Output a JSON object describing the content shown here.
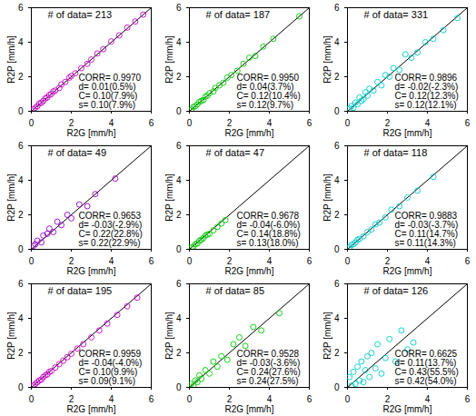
{
  "chart_data": [
    {
      "type": "scatter",
      "xlabel": "R2G [mm/h]",
      "ylabel": "R2P [mm/h]",
      "xlim": [
        0,
        6
      ],
      "ylim": [
        0,
        6
      ],
      "xticks": [
        0,
        2,
        4,
        6
      ],
      "yticks": [
        0,
        2,
        4,
        6
      ],
      "grid": false,
      "color": "#cc00cc",
      "marker": "circle",
      "annotations": [
        "# of data= 213",
        "CORR= 0.9970",
        "d= 0.01(0.5%)",
        "C= 0.10(7.9%)",
        "s= 0.10(7.9%)"
      ],
      "x": [
        0.1,
        0.2,
        0.3,
        0.4,
        0.5,
        0.6,
        0.7,
        0.8,
        0.9,
        1.0,
        1.1,
        1.2,
        1.4,
        1.5,
        1.7,
        1.9,
        2.0,
        2.2,
        2.5,
        2.8,
        3.0,
        3.3,
        3.6,
        4.0,
        4.4,
        4.8,
        5.2,
        5.6
      ],
      "y": [
        0.1,
        0.2,
        0.3,
        0.45,
        0.5,
        0.6,
        0.75,
        0.8,
        0.95,
        1.0,
        1.15,
        1.2,
        1.35,
        1.55,
        1.7,
        1.95,
        2.05,
        2.2,
        2.5,
        2.75,
        3.0,
        3.35,
        3.6,
        4.05,
        4.4,
        4.85,
        5.2,
        5.6
      ]
    },
    {
      "type": "scatter",
      "xlabel": "R2G [mm/h]",
      "ylabel": "R2P [mm/h]",
      "xlim": [
        0,
        6
      ],
      "ylim": [
        0,
        6
      ],
      "xticks": [
        0,
        2,
        4,
        6
      ],
      "yticks": [
        0,
        2,
        4,
        6
      ],
      "grid": false,
      "color": "#00cc00",
      "marker": "circle",
      "annotations": [
        "# of data= 187",
        "CORR= 0.9950",
        "d= 0.04(3.7%)",
        "C= 0.12(10.4%)",
        "s= 0.12(9.7%)"
      ],
      "x": [
        0.1,
        0.2,
        0.3,
        0.4,
        0.5,
        0.6,
        0.7,
        0.8,
        0.9,
        1.0,
        1.2,
        1.3,
        1.5,
        1.7,
        1.9,
        2.1,
        2.4,
        2.7,
        3.0,
        3.3,
        3.7,
        4.2,
        5.5
      ],
      "y": [
        0.1,
        0.25,
        0.3,
        0.4,
        0.55,
        0.6,
        0.65,
        0.85,
        0.9,
        1.05,
        1.15,
        1.35,
        1.5,
        1.65,
        1.95,
        2.1,
        2.35,
        2.75,
        3.1,
        3.2,
        3.75,
        4.2,
        5.5
      ]
    },
    {
      "type": "scatter",
      "xlabel": "R2G [mm/h]",
      "ylabel": "R2P [mm/h]",
      "xlim": [
        0,
        6
      ],
      "ylim": [
        0,
        6
      ],
      "xticks": [
        0,
        2,
        4,
        6
      ],
      "yticks": [
        0,
        2,
        4,
        6
      ],
      "grid": false,
      "color": "#00cccc",
      "marker": "circle",
      "annotations": [
        "# of data= 331",
        "CORR= 0.9896",
        "d= -0.02(-2.3%)",
        "C= 0.12(12.3%)",
        "s= 0.12(12.1%)"
      ],
      "x": [
        0.1,
        0.2,
        0.3,
        0.4,
        0.5,
        0.6,
        0.7,
        0.8,
        0.9,
        1.0,
        1.1,
        1.3,
        1.5,
        1.7,
        1.9,
        2.1,
        2.3,
        2.6,
        2.9,
        3.2,
        3.5,
        3.9,
        4.3,
        4.8,
        5.5
      ],
      "y": [
        0.15,
        0.3,
        0.2,
        0.5,
        0.4,
        0.8,
        0.6,
        0.7,
        1.1,
        0.9,
        1.3,
        1.2,
        1.7,
        1.5,
        2.1,
        2.0,
        2.5,
        2.4,
        3.3,
        3.1,
        3.4,
        4.0,
        4.2,
        4.7,
        5.4
      ]
    },
    {
      "type": "scatter",
      "xlabel": "R2G [mm/h]",
      "ylabel": "R2P [mm/h]",
      "xlim": [
        0,
        6
      ],
      "ylim": [
        0,
        6
      ],
      "xticks": [
        0,
        2,
        4,
        6
      ],
      "yticks": [
        0,
        2,
        4,
        6
      ],
      "grid": false,
      "color": "#9900cc",
      "marker": "circle",
      "annotations": [
        "# of data= 49",
        "CORR= 0.9653",
        "d= -0.03(-2.9%)",
        "C= 0.22(22.8%)",
        "s= 0.22(22.9%)"
      ],
      "x": [
        0.1,
        0.2,
        0.3,
        0.5,
        0.6,
        0.8,
        0.9,
        1.1,
        1.3,
        1.5,
        1.8,
        2.0,
        2.4,
        2.8,
        3.2,
        4.2
      ],
      "y": [
        0.2,
        0.3,
        0.5,
        0.4,
        0.8,
        0.9,
        1.2,
        1.0,
        1.6,
        1.4,
        2.0,
        1.8,
        2.6,
        2.5,
        3.2,
        4.1
      ]
    },
    {
      "type": "scatter",
      "xlabel": "R2G [mm/h]",
      "ylabel": "R2P [mm/h]",
      "xlim": [
        0,
        6
      ],
      "ylim": [
        0,
        6
      ],
      "xticks": [
        0,
        2,
        4,
        6
      ],
      "yticks": [
        0,
        2,
        4,
        6
      ],
      "grid": false,
      "color": "#00cc00",
      "marker": "circle",
      "annotations": [
        "# of data= 47",
        "CORR= 0.9678",
        "d= -0.04(-6.0%)",
        "C= 0.14(18.8%)",
        "s= 0.13(18.0%)"
      ],
      "x": [
        0.1,
        0.2,
        0.3,
        0.4,
        0.5,
        0.6,
        0.7,
        0.8,
        0.9,
        1.0,
        1.2,
        1.4,
        1.6,
        1.8
      ],
      "y": [
        0.1,
        0.15,
        0.3,
        0.35,
        0.5,
        0.55,
        0.65,
        0.8,
        0.85,
        0.9,
        1.1,
        1.3,
        1.5,
        1.7
      ]
    },
    {
      "type": "scatter",
      "xlabel": "R2G [mm/h]",
      "ylabel": "R2P [mm/h]",
      "xlim": [
        0,
        6
      ],
      "ylim": [
        0,
        6
      ],
      "xticks": [
        0,
        2,
        4,
        6
      ],
      "yticks": [
        0,
        2,
        4,
        6
      ],
      "grid": false,
      "color": "#00cccc",
      "marker": "circle",
      "annotations": [
        "# of data= 118",
        "CORR= 0.9883",
        "d= -0.03(-3.7%)",
        "C= 0.11(14.7%)",
        "s= 0.11(14.3%)"
      ],
      "x": [
        0.1,
        0.2,
        0.3,
        0.4,
        0.5,
        0.6,
        0.8,
        1.0,
        1.2,
        1.4,
        1.6,
        1.9,
        2.2,
        2.6,
        3.0,
        3.5,
        4.3
      ],
      "y": [
        0.1,
        0.25,
        0.3,
        0.4,
        0.55,
        0.6,
        0.75,
        1.0,
        1.15,
        1.45,
        1.55,
        1.85,
        2.3,
        2.5,
        3.0,
        3.4,
        4.2
      ]
    },
    {
      "type": "scatter",
      "xlabel": "R2G [mm/h]",
      "ylabel": "R2P [mm/h]",
      "xlim": [
        0,
        6
      ],
      "ylim": [
        0,
        6
      ],
      "xticks": [
        0,
        2,
        4,
        6
      ],
      "yticks": [
        0,
        2,
        4,
        6
      ],
      "grid": false,
      "color": "#cc00cc",
      "marker": "circle",
      "annotations": [
        "# of data= 195",
        "CORR= 0.9959",
        "d= -0.04(-4.0%)",
        "C= 0.10(9.9%)",
        "s= 0.09(9.1%)"
      ],
      "x": [
        0.1,
        0.2,
        0.3,
        0.4,
        0.5,
        0.6,
        0.7,
        0.8,
        0.9,
        1.0,
        1.2,
        1.4,
        1.6,
        1.8,
        2.0,
        2.3,
        2.6,
        3.0,
        3.4,
        3.8,
        4.3,
        4.8,
        5.3
      ],
      "y": [
        0.1,
        0.2,
        0.3,
        0.4,
        0.45,
        0.6,
        0.7,
        0.75,
        0.9,
        0.95,
        1.15,
        1.35,
        1.55,
        1.75,
        1.95,
        2.25,
        2.5,
        2.9,
        3.3,
        3.7,
        4.2,
        4.7,
        5.2
      ]
    },
    {
      "type": "scatter",
      "xlabel": "R2G [mm/h]",
      "ylabel": "R2P [mm/h]",
      "xlim": [
        0,
        6
      ],
      "ylim": [
        0,
        6
      ],
      "xticks": [
        0,
        2,
        4,
        6
      ],
      "yticks": [
        0,
        2,
        4,
        6
      ],
      "grid": false,
      "color": "#00cc00",
      "marker": "circle",
      "annotations": [
        "# of data= 85",
        "CORR= 0.9528",
        "d= -0.03(-3.6%)",
        "C= 0.24(27.6%)",
        "s= 0.24(27.5%)"
      ],
      "x": [
        0.1,
        0.2,
        0.3,
        0.4,
        0.5,
        0.6,
        0.8,
        1.0,
        1.2,
        1.4,
        1.6,
        1.9,
        2.2,
        2.5,
        2.8,
        3.2,
        3.6,
        4.5
      ],
      "y": [
        0.2,
        0.1,
        0.4,
        0.3,
        0.7,
        0.5,
        1.0,
        0.8,
        1.5,
        1.2,
        1.8,
        1.6,
        2.5,
        2.9,
        2.4,
        3.5,
        3.3,
        4.3
      ]
    },
    {
      "type": "scatter",
      "xlabel": "R2G [mm/h]",
      "ylabel": "R2P [mm/h]",
      "xlim": [
        0,
        6
      ],
      "ylim": [
        0,
        6
      ],
      "xticks": [
        0,
        2,
        4,
        6
      ],
      "yticks": [
        0,
        2,
        4,
        6
      ],
      "grid": false,
      "color": "#00cccc",
      "marker": "circle",
      "annotations": [
        "# of data= 126",
        "CORR= 0.6625",
        "d= 0.11(13.7%)",
        "C= 0.43(55.5%)",
        "s= 0.42(54.0%)"
      ],
      "x": [
        0.1,
        0.2,
        0.3,
        0.4,
        0.5,
        0.6,
        0.7,
        0.8,
        0.9,
        1.0,
        1.1,
        1.2,
        1.4,
        1.5,
        1.7,
        1.9,
        2.1,
        2.4,
        2.7,
        3.0,
        3.3
      ],
      "y": [
        0.6,
        0.1,
        0.9,
        0.2,
        1.2,
        0.4,
        1.5,
        0.3,
        1.0,
        1.8,
        0.6,
        2.0,
        1.1,
        2.5,
        0.8,
        1.7,
        2.8,
        1.5,
        3.3,
        2.2,
        2.6
      ]
    }
  ]
}
